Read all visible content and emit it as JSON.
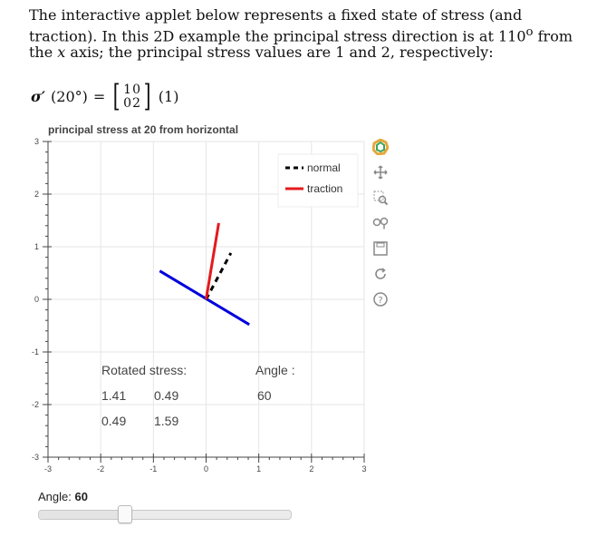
{
  "intro": {
    "part1": "The interactive applet below represents a fixed state of stress (and traction). In this 2D example the principal stress direction is at 110",
    "deg": "o",
    "part2": " from the ",
    "axis_var": "x",
    "part3": " axis; the principal stress values are 1 and 2, respectively:"
  },
  "equation": {
    "lhs": "σ′",
    "arg": "(20°)",
    "equals": "=",
    "matrix": [
      "1",
      "0",
      "0",
      "2"
    ],
    "tag": "(1)"
  },
  "plot": {
    "title": "principal stress at 20 from horizontal",
    "xlim": [
      -3,
      3
    ],
    "ylim": [
      -3,
      3
    ],
    "x_ticks": [
      "-3",
      "-2",
      "-1",
      "0",
      "1",
      "2",
      "3"
    ],
    "y_ticks": [
      "3",
      "2",
      "1",
      "0",
      "-1",
      "-2",
      "-3"
    ],
    "grid": true,
    "legend_position": "top-right",
    "legend": [
      {
        "label": "normal",
        "style": "dashed",
        "color": "#000000"
      },
      {
        "label": "traction",
        "style": "solid",
        "color": "#e41a1c"
      }
    ],
    "vectors": [
      {
        "name": "plane",
        "color": "#0000dd",
        "x": [
          -0.88,
          0.82
        ],
        "y": [
          0.54,
          -0.48
        ]
      },
      {
        "name": "normal",
        "color": "#000000",
        "x": [
          0.0,
          0.47
        ],
        "y": [
          0.0,
          0.88
        ]
      },
      {
        "name": "traction",
        "color": "#e41a1c",
        "x": [
          0.0,
          0.24
        ],
        "y": [
          0.0,
          1.45
        ]
      }
    ],
    "rotated_label": "Rotated stress:",
    "rotated_matrix": [
      [
        "1.41",
        "0.49"
      ],
      [
        "0.49",
        "1.59"
      ]
    ],
    "angle_label": "Angle :",
    "angle_value": "60"
  },
  "toolbar": {
    "items": [
      "bokeh-logo-icon",
      "pan-icon",
      "box-zoom-icon",
      "wheel-zoom-icon",
      "save-icon",
      "reset-icon",
      "help-icon"
    ]
  },
  "slider": {
    "label": "Angle: ",
    "value": "60",
    "value_num": 60,
    "min": 0,
    "max": 180
  }
}
